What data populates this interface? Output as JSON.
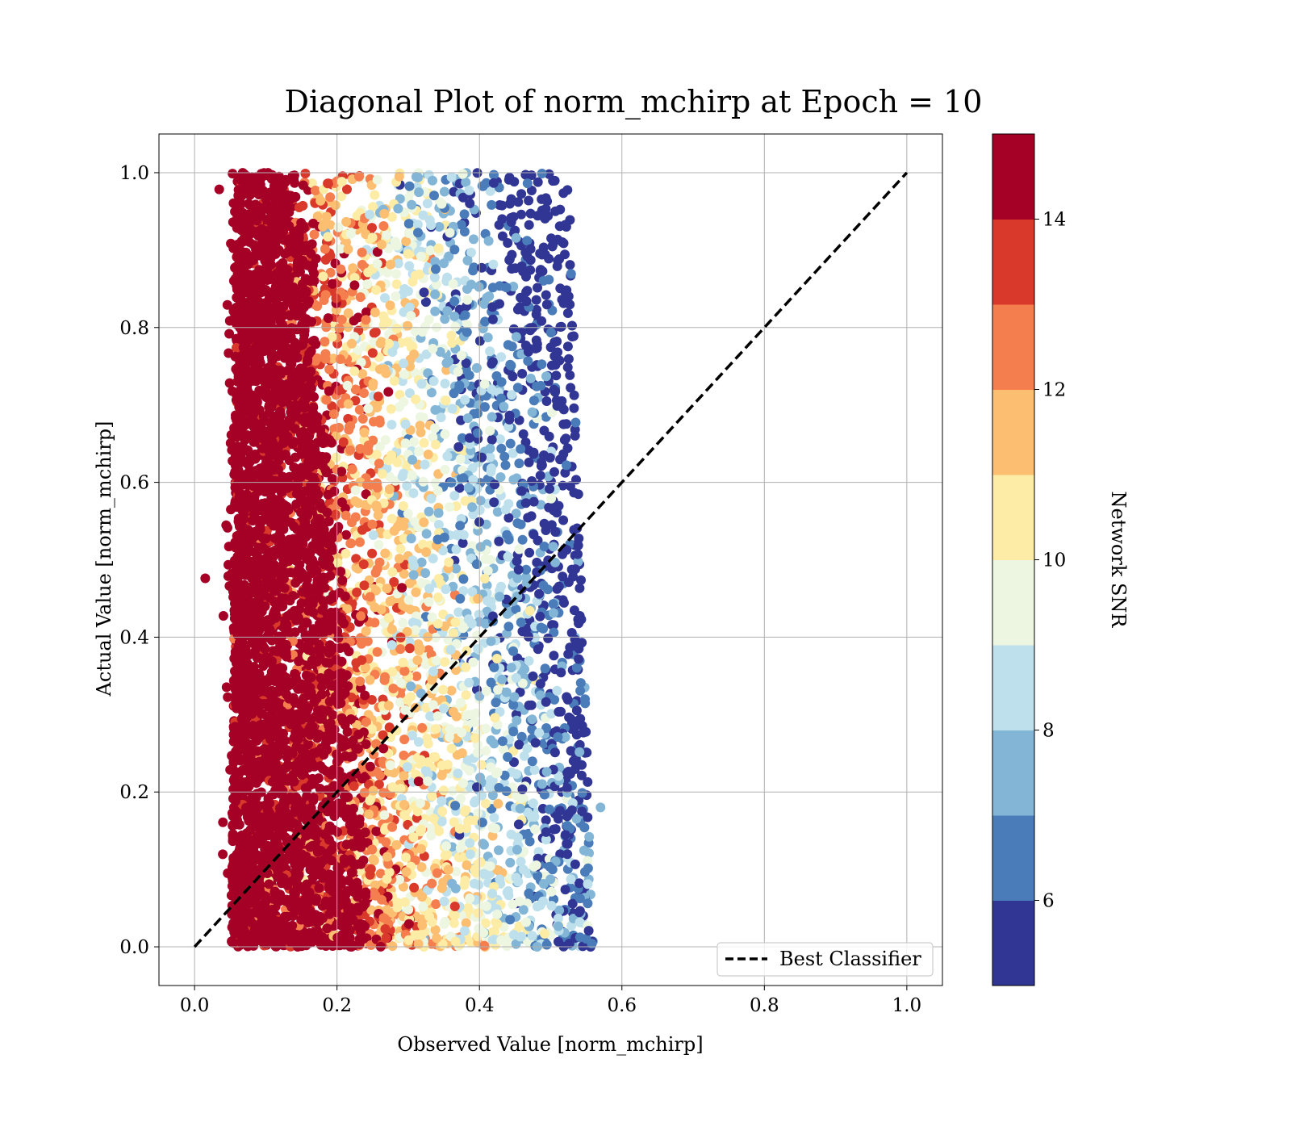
{
  "chart_data": {
    "type": "scatter",
    "title": "Diagonal Plot of norm_mchirp at Epoch = 10",
    "xlabel": "Observed Value [norm_mchirp]",
    "ylabel": "Actual Value [norm_mchirp]",
    "xlim": [
      -0.05,
      1.05
    ],
    "ylim": [
      -0.05,
      1.05
    ],
    "xticks": [
      "0.0",
      "0.2",
      "0.4",
      "0.6",
      "0.8",
      "1.0"
    ],
    "yticks": [
      "0.0",
      "0.2",
      "0.4",
      "0.6",
      "0.8",
      "1.0"
    ],
    "xtick_values": [
      0.0,
      0.2,
      0.4,
      0.6,
      0.8,
      1.0
    ],
    "ytick_values": [
      0.0,
      0.2,
      0.4,
      0.6,
      0.8,
      1.0
    ],
    "grid": true,
    "colorbar": {
      "label": "Network SNR",
      "range": [
        5,
        15
      ],
      "ticks": [
        "6",
        "8",
        "10",
        "12",
        "14"
      ],
      "tick_values": [
        6,
        8,
        10,
        12,
        14
      ],
      "colors": [
        "#313695",
        "#4575b4",
        "#74add1",
        "#abd9e9",
        "#e0f3f8",
        "#fee090",
        "#fdae61",
        "#f46d43",
        "#d73027",
        "#a50026"
      ],
      "colors_display": [
        "#313695",
        "#4a7cb9",
        "#82b5d6",
        "#bde0ec",
        "#edf6e0",
        "#fdeca6",
        "#fcbe70",
        "#f57e4e",
        "#d9392a",
        "#a50026"
      ]
    },
    "series": [
      {
        "name": "Best Classifier",
        "style": "dashed",
        "color": "#000000",
        "x": [
          0.0,
          1.0
        ],
        "y": [
          0.0,
          1.0
        ]
      }
    ],
    "scatter": {
      "note_x_extent": [
        0.05,
        0.57
      ],
      "outliers": [
        {
          "x": 0.015,
          "y": 0.476,
          "snr": 15
        },
        {
          "x": 0.57,
          "y": 0.18,
          "snr": 7
        }
      ]
    },
    "legend": {
      "position": "lower-right",
      "entries": [
        "Best Classifier"
      ]
    }
  }
}
